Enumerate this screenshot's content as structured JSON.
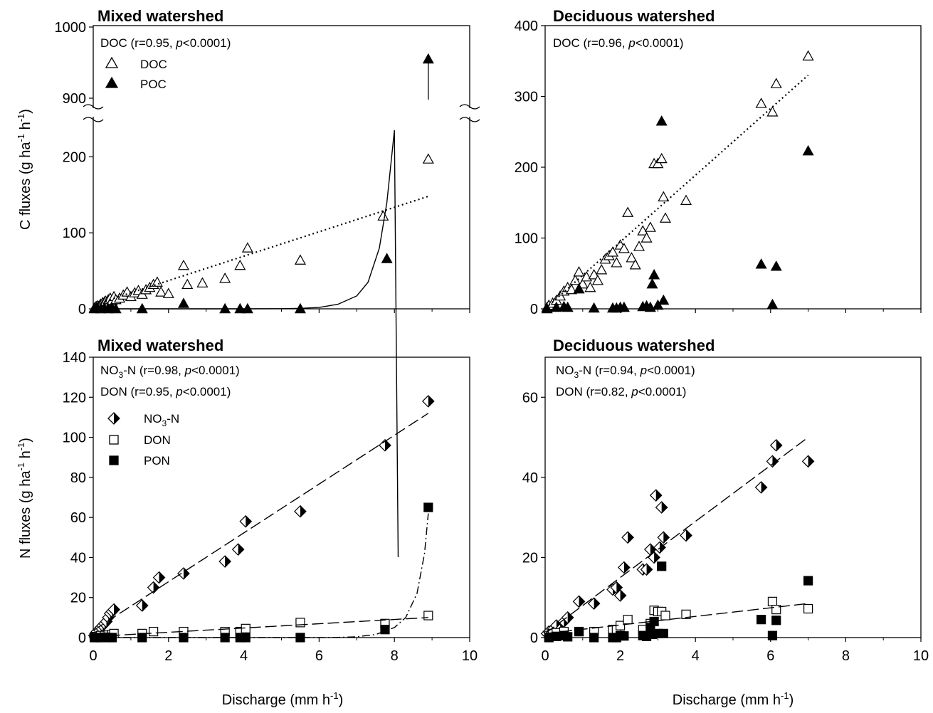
{
  "figure": {
    "ylabel_top_prefix": "C fluxes (g ha",
    "ylabel_bottom_prefix": "N fluxes (g ha",
    "ylabel_mid": " h",
    "ylabel_sup": "-1",
    "ylabel_close": ")",
    "xlabel_prefix": "Discharge (mm h",
    "xlabel_sup": "-1",
    "xlabel_close": ")"
  },
  "chart_data": [
    {
      "id": "mixed_c",
      "type": "scatter",
      "title": "Mixed watershed",
      "xlim": [
        0,
        10
      ],
      "ylim_lower": [
        0,
        250
      ],
      "y_break": true,
      "ylim_upper": [
        890,
        1000
      ],
      "xticks": [
        "0",
        "2",
        "4",
        "6",
        "8",
        "10"
      ],
      "yticks": [
        "0",
        "100",
        "200",
        "900",
        "1000"
      ],
      "annotations": [
        {
          "parts": [
            "DOC (r=0.95, ",
            "p",
            "<0.0001)"
          ]
        }
      ],
      "legend_position": "top-left",
      "series": [
        {
          "name": "DOC",
          "marker": "triangle-open",
          "x": [
            0.03,
            0.06,
            0.08,
            0.1,
            0.12,
            0.15,
            0.18,
            0.2,
            0.22,
            0.25,
            0.28,
            0.3,
            0.33,
            0.36,
            0.4,
            0.45,
            0.5,
            0.55,
            0.6,
            0.7,
            0.8,
            0.9,
            1.0,
            1.1,
            1.2,
            1.3,
            1.4,
            1.5,
            1.6,
            1.7,
            1.8,
            2.0,
            2.4,
            2.5,
            2.9,
            3.5,
            3.9,
            4.1,
            5.5,
            7.7,
            8.9
          ],
          "y": [
            1,
            2,
            3,
            2,
            4,
            3,
            5,
            6,
            4,
            8,
            7,
            9,
            10,
            6,
            12,
            14,
            11,
            16,
            12,
            14,
            18,
            22,
            16,
            21,
            24,
            19,
            25,
            28,
            32,
            35,
            22,
            20,
            57,
            32,
            34,
            40,
            57,
            80,
            64,
            122,
            197
          ]
        },
        {
          "name": "POC",
          "marker": "triangle-filled",
          "x": [
            0.03,
            0.1,
            0.2,
            0.3,
            0.4,
            0.5,
            0.6,
            1.3,
            2.4,
            3.5,
            3.9,
            4.1,
            5.5,
            7.8,
            8.9
          ],
          "y": [
            0,
            1,
            0,
            1,
            0,
            1,
            0,
            0,
            7,
            0,
            0,
            0,
            0,
            66,
            955
          ]
        },
        {
          "name": "DOC fit",
          "style": "dotted",
          "x": [
            0,
            8.9
          ],
          "y": [
            5,
            148
          ]
        },
        {
          "name": "POC fit",
          "style": "solid",
          "x": [
            0,
            1,
            2,
            3,
            4,
            5,
            5.5,
            6,
            6.5,
            7,
            7.3,
            7.6,
            7.8,
            8,
            8.1
          ],
          "y": [
            0,
            0,
            0,
            0,
            0,
            0.2,
            0.6,
            1.8,
            6,
            17,
            35,
            80,
            140,
            235,
            255
          ]
        }
      ],
      "arrow": {
        "x": 8.9,
        "y_from": 898,
        "y_to": 950
      }
    },
    {
      "id": "deciduous_c",
      "type": "scatter",
      "title": "Deciduous watershed",
      "xlim": [
        0,
        10
      ],
      "ylim": [
        0,
        400
      ],
      "xticks": [
        "0",
        "2",
        "4",
        "6",
        "8",
        "10"
      ],
      "yticks": [
        "0",
        "100",
        "200",
        "300",
        "400"
      ],
      "annotations": [
        {
          "parts": [
            "DOC (r=0.96, ",
            "p",
            "<0.0001)"
          ]
        }
      ],
      "series": [
        {
          "name": "DOC",
          "marker": "triangle-open",
          "x": [
            0.05,
            0.1,
            0.2,
            0.3,
            0.4,
            0.5,
            0.6,
            0.7,
            0.8,
            0.9,
            1.0,
            1.1,
            1.2,
            1.3,
            1.4,
            1.5,
            1.6,
            1.7,
            1.8,
            1.9,
            2.0,
            2.1,
            2.2,
            2.3,
            2.4,
            2.5,
            2.6,
            2.7,
            2.8,
            2.9,
            3.0,
            3.1,
            3.15,
            3.2,
            3.75,
            5.75,
            6.05,
            6.15,
            7.0
          ],
          "y": [
            2,
            5,
            8,
            12,
            18,
            25,
            30,
            27,
            40,
            52,
            35,
            45,
            30,
            48,
            40,
            55,
            70,
            75,
            80,
            65,
            90,
            85,
            136,
            72,
            62,
            88,
            110,
            100,
            115,
            205,
            205,
            212,
            158,
            128,
            153,
            290,
            278,
            318,
            357
          ]
        },
        {
          "name": "POC",
          "marker": "triangle-filled",
          "x": [
            0.05,
            0.3,
            0.5,
            0.6,
            0.9,
            1.3,
            1.8,
            1.9,
            2.0,
            2.1,
            2.6,
            2.7,
            2.8,
            2.85,
            2.9,
            3.0,
            3.1,
            3.15,
            5.75,
            6.05,
            6.15,
            7.0
          ],
          "y": [
            0,
            2,
            3,
            2,
            28,
            1,
            1,
            1,
            2,
            2,
            3,
            4,
            2,
            35,
            48,
            5,
            265,
            12,
            63,
            6,
            60,
            223
          ]
        },
        {
          "name": "DOC fit",
          "style": "dotted",
          "x": [
            0.1,
            7.0
          ],
          "y": [
            5,
            330
          ]
        }
      ]
    },
    {
      "id": "mixed_n",
      "type": "scatter",
      "title": "Mixed watershed",
      "xlim": [
        0,
        10
      ],
      "ylim": [
        0,
        140
      ],
      "xticks": [
        "0",
        "2",
        "4",
        "6",
        "8",
        "10"
      ],
      "yticks": [
        "0",
        "20",
        "40",
        "60",
        "80",
        "100",
        "120",
        "140"
      ],
      "annotations": [
        {
          "parts": [
            "NO",
            "3",
            "-N (r=0.98, ",
            "p",
            "<0.0001)"
          ]
        },
        {
          "parts": [
            "DON (r=0.95, ",
            "p",
            "<0.0001)"
          ]
        }
      ],
      "legend_position": "left",
      "series": [
        {
          "name": "NO3-N",
          "marker": "diamond-half",
          "x": [
            0.03,
            0.06,
            0.1,
            0.15,
            0.2,
            0.25,
            0.3,
            0.35,
            0.4,
            0.45,
            0.5,
            0.55,
            1.3,
            1.6,
            1.75,
            2.4,
            3.5,
            3.85,
            4.05,
            5.5,
            7.75,
            8.9
          ],
          "y": [
            1,
            2,
            3,
            4,
            5,
            6,
            7,
            8,
            10,
            12,
            13,
            14,
            16,
            25,
            30,
            32,
            38,
            44,
            58,
            63,
            96,
            118
          ]
        },
        {
          "name": "DON",
          "marker": "square-open",
          "x": [
            0.03,
            0.1,
            0.2,
            0.3,
            0.4,
            0.5,
            0.55,
            1.3,
            1.6,
            2.4,
            3.5,
            3.9,
            4.05,
            5.5,
            7.75,
            8.9
          ],
          "y": [
            0.3,
            0.5,
            1,
            1,
            1.2,
            1.5,
            2,
            2,
            3,
            3,
            3,
            3,
            4.5,
            7.5,
            7,
            11
          ]
        },
        {
          "name": "PON",
          "marker": "square-filled",
          "x": [
            0.03,
            0.1,
            0.2,
            0.3,
            0.4,
            0.5,
            1.3,
            2.4,
            3.5,
            3.9,
            4.05,
            5.5,
            7.75,
            8.9
          ],
          "y": [
            0,
            0,
            0,
            0.2,
            0,
            0,
            0,
            0,
            0,
            0,
            0,
            0,
            4,
            65
          ]
        },
        {
          "name": "NO3-N fit",
          "style": "long-dash",
          "x": [
            0,
            8.9
          ],
          "y": [
            3.5,
            112
          ]
        },
        {
          "name": "DON fit",
          "style": "long-dash",
          "x": [
            0,
            8.9
          ],
          "y": [
            0.5,
            10
          ]
        },
        {
          "name": "PON fit",
          "style": "dash-dot",
          "x": [
            0,
            2,
            4,
            5,
            5.5,
            6,
            6.5,
            7,
            7.5,
            8,
            8.3,
            8.6,
            8.8,
            8.9
          ],
          "y": [
            0,
            0,
            0,
            0,
            0,
            0,
            0.1,
            0.4,
            1.5,
            5,
            10,
            22,
            42,
            62
          ]
        }
      ]
    },
    {
      "id": "deciduous_n",
      "type": "scatter",
      "title": "Deciduous watershed",
      "xlim": [
        0,
        10
      ],
      "ylim": [
        0,
        70
      ],
      "xticks": [
        "0",
        "2",
        "4",
        "6",
        "8",
        "10"
      ],
      "yticks": [
        "0",
        "20",
        "40",
        "60"
      ],
      "annotations": [
        {
          "parts": [
            "NO",
            "3",
            "-N (r=0.94, ",
            "p",
            "<0.0001)"
          ]
        },
        {
          "parts": [
            "DON (r=0.82, ",
            "p",
            "<0.0001)"
          ]
        }
      ],
      "series": [
        {
          "name": "NO3-N",
          "marker": "diamond-half",
          "x": [
            0.05,
            0.1,
            0.2,
            0.3,
            0.4,
            0.5,
            0.6,
            0.9,
            1.3,
            1.8,
            1.9,
            2.0,
            2.1,
            2.2,
            2.6,
            2.7,
            2.8,
            2.9,
            2.95,
            3.05,
            3.1,
            3.15,
            3.75,
            5.75,
            6.05,
            6.15,
            7.0
          ],
          "y": [
            1,
            1.5,
            2,
            3,
            2,
            4,
            5,
            9,
            8.5,
            12,
            12.5,
            10.5,
            17.5,
            25,
            17,
            17,
            22,
            20,
            35.5,
            22.5,
            32.5,
            25,
            25.5,
            37.5,
            44,
            48,
            44
          ]
        },
        {
          "name": "DON",
          "marker": "square-open",
          "x": [
            0.1,
            0.2,
            0.3,
            0.5,
            0.9,
            1.3,
            1.8,
            1.9,
            2.0,
            2.2,
            2.6,
            2.8,
            2.9,
            3.0,
            3.1,
            3.2,
            3.75,
            6.05,
            6.15,
            7.0
          ],
          "y": [
            0.5,
            1,
            1.2,
            1.5,
            1.5,
            1.5,
            2,
            2,
            3,
            4.5,
            2,
            3.5,
            6.8,
            6.5,
            6.5,
            5.5,
            5.8,
            9,
            7,
            7.2
          ]
        },
        {
          "name": "PON",
          "marker": "square-filled",
          "x": [
            0.1,
            0.3,
            0.5,
            0.6,
            0.9,
            1.3,
            1.8,
            1.9,
            2.0,
            2.1,
            2.6,
            2.7,
            2.8,
            2.85,
            2.9,
            3.0,
            3.1,
            3.15,
            5.75,
            6.05,
            6.15,
            7.0
          ],
          "y": [
            0,
            0.3,
            0.5,
            0.2,
            1.5,
            0,
            0,
            0,
            0.5,
            0.4,
            0.5,
            0.3,
            2.5,
            0.8,
            4,
            1,
            17.8,
            1,
            4.5,
            0.5,
            4.3,
            14.2
          ]
        },
        {
          "name": "NO3-N fit",
          "style": "long-dash",
          "x": [
            0,
            7.0
          ],
          "y": [
            1,
            50
          ]
        },
        {
          "name": "DON fit",
          "style": "long-dash",
          "x": [
            0,
            7.0
          ],
          "y": [
            1,
            8.5
          ]
        }
      ]
    }
  ],
  "legends": {
    "c": [
      {
        "label": "DOC",
        "marker": "triangle-open"
      },
      {
        "label": "POC",
        "marker": "triangle-filled"
      }
    ],
    "n": [
      {
        "label_parts": [
          "NO",
          "3",
          "-N"
        ],
        "marker": "diamond-half"
      },
      {
        "label_parts": [
          "DON"
        ],
        "marker": "square-open"
      },
      {
        "label_parts": [
          "PON"
        ],
        "marker": "square-filled"
      }
    ]
  }
}
